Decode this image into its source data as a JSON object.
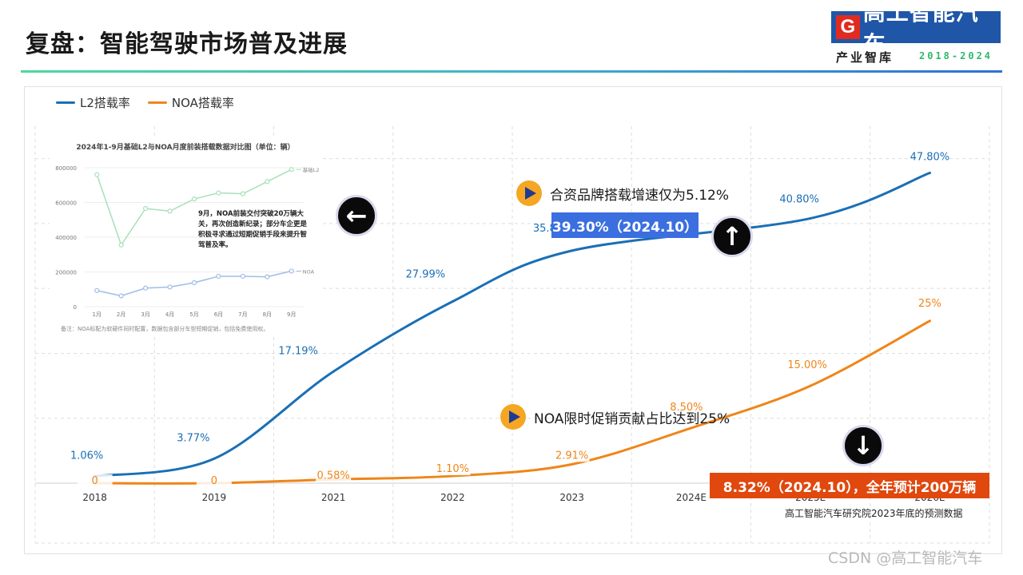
{
  "title": "复盘：智能驾驶市场普及进展",
  "logo": {
    "mark": "G",
    "name": "高工智能汽车",
    "subtitle": "产业智库",
    "years": "2018-2024"
  },
  "chart_data": {
    "type": "line",
    "categories": [
      "2018",
      "2019",
      "2021",
      "2022",
      "2023",
      "2024E",
      "2025E",
      "2026E"
    ],
    "series": [
      {
        "name": "L2搭载率",
        "color": "#1a6fb5",
        "values": [
          1.06,
          3.77,
          17.19,
          27.99,
          35.82,
          null,
          40.8,
          47.8
        ],
        "labels": [
          "1.06%",
          "3.77%",
          "17.19%",
          "27.99%",
          "35.82%",
          "",
          "40.80%",
          "47.80%"
        ]
      },
      {
        "name": "NOA搭载率",
        "color": "#f08519",
        "values": [
          0,
          0,
          0.58,
          1.1,
          2.91,
          8.5,
          15.0,
          25
        ],
        "labels": [
          "0",
          "0",
          "0.58%",
          "1.10%",
          "2.91%",
          "8.50%",
          "15.00%",
          "25%"
        ]
      }
    ],
    "ylim": [
      0,
      55
    ],
    "grid": true,
    "legend": "top-left"
  },
  "inset": {
    "title": "2024年1-9月基础L2与NOA月度前装搭载数据对比图（单位：辆）",
    "yticks": [
      "800000",
      "600000",
      "400000",
      "200000",
      "0"
    ],
    "ytick_values": [
      800000,
      600000,
      400000,
      200000,
      0
    ],
    "months": [
      "1月",
      "2月",
      "3月",
      "4月",
      "5月",
      "6月",
      "7月",
      "8月",
      "9月"
    ],
    "series": [
      {
        "name": "基础L2",
        "color": "#a8e0b8",
        "values": [
          760000,
          355000,
          565000,
          550000,
          620000,
          655000,
          650000,
          720000,
          790000
        ]
      },
      {
        "name": "NOA",
        "color": "#9fbde6",
        "values": [
          93000,
          62000,
          107000,
          113000,
          138000,
          175000,
          175000,
          172000,
          205000
        ]
      }
    ],
    "note": "9月，NOA前装交付突破20万辆大关，再次创造新纪录；部分车企更是积极寻求通过短期促销手段来提升智驾普及率。",
    "footnote": "备注：NOA标配为软硬件同时配置，数据包含部分车型短期促销，包括免费使用权。"
  },
  "annotations": {
    "jv_growth": "合资品牌搭载增速仅为5.12%",
    "noa_promo": "NOA限时促销贡献占比达到25%",
    "l2_highlight": "39.30%（2024.10）",
    "noa_highlight": "8.32%（2024.10），全年预计200万辆",
    "l2_highlight_color": "#3b6fe0",
    "noa_highlight_color": "#e0480e"
  },
  "arrows": {
    "left": "left-arrow-icon",
    "up": "up-arrow-icon",
    "down": "down-arrow-icon"
  },
  "source_note": "高工智能汽车研究院2023年底的预测数据",
  "watermark": "CSDN @高工智能汽车"
}
